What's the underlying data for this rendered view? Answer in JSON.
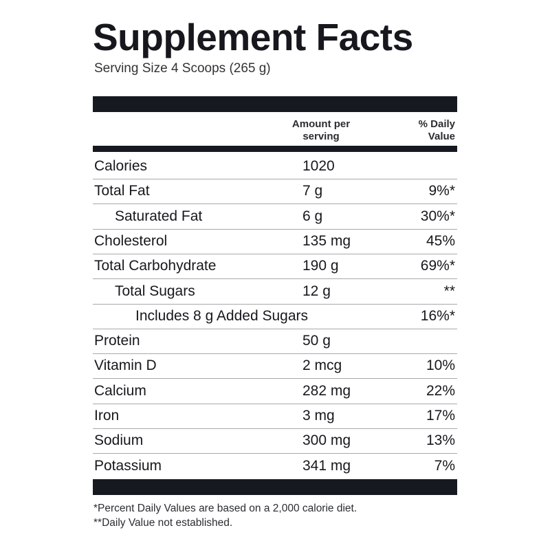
{
  "header": {
    "title": "Supplement Facts",
    "serving_size": "Serving Size 4 Scoops (265 g)"
  },
  "table": {
    "columns": {
      "amount": "Amount per serving",
      "daily_value": "% Daily Value"
    },
    "rows": [
      {
        "name": "Calories",
        "amount": "1020"
      },
      {
        "name": "Total Fat",
        "amount": "7 g",
        "daily_value": "9%*"
      },
      {
        "name": "Saturated Fat",
        "amount": "6 g",
        "daily_value": "30%*"
      },
      {
        "name": "Cholesterol",
        "amount": "135 mg",
        "daily_value": "45%"
      },
      {
        "name": "Total Carbohydrate",
        "amount": "190 g",
        "daily_value": "69%*"
      },
      {
        "name": "Total Sugars",
        "amount": "12 g",
        "daily_value": "**"
      },
      {
        "name": "Includes 8 g Added Sugars",
        "daily_value": "16%*"
      },
      {
        "name": "Protein",
        "amount": "50 g"
      },
      {
        "name": "Vitamin D",
        "amount": "2 mcg",
        "daily_value": "10%"
      },
      {
        "name": "Calcium",
        "amount": "282 mg",
        "daily_value": "22%"
      },
      {
        "name": "Iron",
        "amount": "3 mg",
        "daily_value": "17%"
      },
      {
        "name": "Sodium",
        "amount": "300 mg",
        "daily_value": "13%"
      },
      {
        "name": "Potassium",
        "amount": "341 mg",
        "daily_value": "7%"
      }
    ]
  },
  "footnotes": [
    "*Percent Daily Values are based on a 2,000 calorie diet.",
    "**Daily Value not established."
  ]
}
